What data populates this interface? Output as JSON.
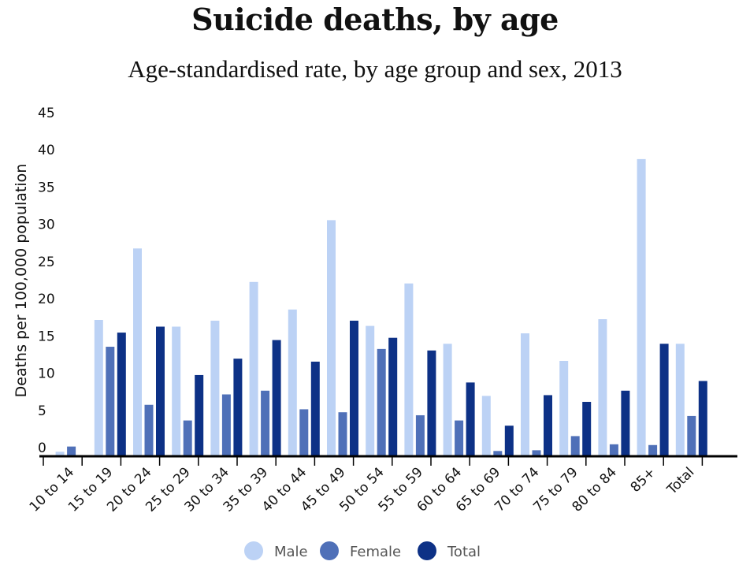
{
  "chart_data": {
    "type": "bar",
    "title": "Suicide deaths, by age",
    "subtitle": "Age-standardised rate, by age group and sex, 2013",
    "xlabel": "",
    "ylabel": "Deaths per 100,000 population",
    "ylim": [
      0,
      45
    ],
    "yticks": [
      "0",
      "5",
      "10",
      "15",
      "20",
      "25",
      "30",
      "35",
      "40",
      "45"
    ],
    "ytick_values": [
      0,
      5,
      10,
      15,
      20,
      25,
      30,
      35,
      40,
      45
    ],
    "grid": false,
    "legend_position": "bottom-center",
    "categories": [
      "10 to 14",
      "15 to 19",
      "20 to 24",
      "25 to 29",
      "30 to 34",
      "35 to 39",
      "40 to 44",
      "45 to 49",
      "50 to 54",
      "55 to 59",
      "60 to 64",
      "65 to 69",
      "70 to 74",
      "75 to 79",
      "80 to 84",
      "85+",
      "Total"
    ],
    "series": [
      {
        "name": "Male",
        "color": "#bcd2f5",
        "values": [
          0.5,
          18.2,
          27.8,
          17.3,
          18.1,
          23.3,
          19.6,
          31.6,
          17.4,
          23.1,
          15.0,
          8.0,
          16.4,
          12.7,
          18.3,
          39.8,
          15.0
        ]
      },
      {
        "name": "Female",
        "color": "#4f70b8",
        "values": [
          1.2,
          14.6,
          6.8,
          4.7,
          8.2,
          8.7,
          6.2,
          5.8,
          14.3,
          5.4,
          4.7,
          0.6,
          0.7,
          2.6,
          1.5,
          1.4,
          5.3
        ]
      },
      {
        "name": "Total",
        "color": "#0d3186",
        "values": [
          0,
          16.5,
          17.3,
          10.8,
          13.0,
          15.5,
          12.6,
          18.1,
          15.8,
          14.1,
          9.8,
          4.0,
          8.1,
          7.2,
          8.7,
          15.0,
          10.0
        ]
      }
    ]
  }
}
